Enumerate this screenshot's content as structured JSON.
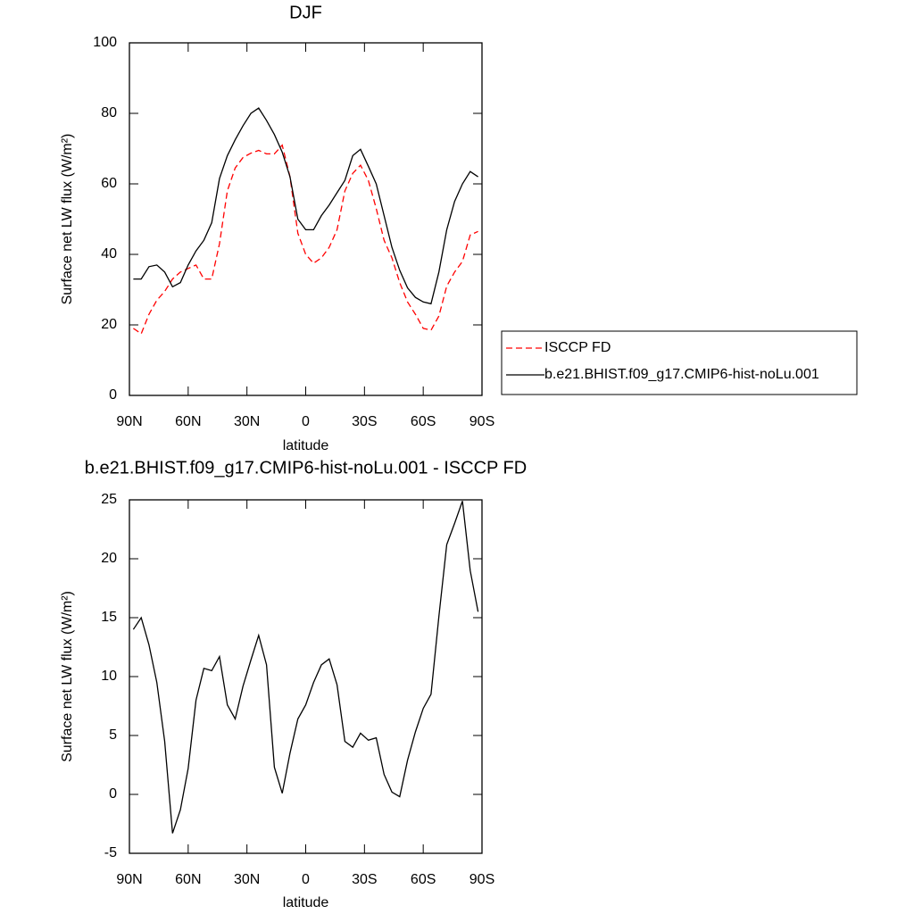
{
  "chart_data": [
    {
      "type": "line",
      "title": "DJF",
      "x_label": "latitude",
      "y_label": "Surface net LW flux (W/m²)",
      "x": [
        88,
        84,
        80,
        76,
        72,
        68,
        64,
        60,
        56,
        52,
        48,
        44,
        40,
        36,
        32,
        28,
        24,
        20,
        16,
        12,
        8,
        4,
        0,
        -4,
        -8,
        -12,
        -16,
        -20,
        -24,
        -28,
        -32,
        -36,
        -40,
        -44,
        -48,
        -52,
        -56,
        -60,
        -64,
        -68,
        -72,
        -76,
        -80,
        -84,
        -88
      ],
      "series": [
        {
          "name": "ISCCP FD",
          "color": "#ff0000",
          "line_style": "dashed",
          "values": [
            19,
            17.5,
            23,
            27,
            29.5,
            33,
            35,
            36,
            37,
            33,
            33,
            43,
            58,
            64.5,
            67.5,
            68.7,
            69.5,
            68.5,
            68.5,
            71,
            62,
            46,
            40,
            37.5,
            39,
            42,
            47,
            58,
            63,
            65.3,
            61,
            53,
            44,
            39,
            32,
            26.5,
            23,
            19,
            18.5,
            22.5,
            31,
            35,
            38,
            45.5,
            46.5
          ]
        },
        {
          "name": "b.e21.BHIST.f09_g17.CMIP6-hist-noLu.001",
          "color": "#000000",
          "line_style": "solid",
          "values": [
            33,
            33,
            36.5,
            37,
            35,
            30.8,
            32,
            37,
            41,
            44,
            49,
            61.5,
            68,
            72.5,
            76.5,
            80,
            81.5,
            78,
            74,
            69,
            62,
            50,
            47,
            47,
            51,
            54,
            57.5,
            61,
            68,
            69.8,
            65,
            60,
            51,
            42,
            35.5,
            30.5,
            27.8,
            26.5,
            26,
            35,
            47,
            55,
            60,
            63.5,
            62
          ]
        }
      ],
      "xlim": [
        90,
        -90
      ],
      "ylim": [
        0,
        100
      ],
      "xticks": [
        {
          "value": 90,
          "label": "90N"
        },
        {
          "value": 60,
          "label": "60N"
        },
        {
          "value": 30,
          "label": "30N"
        },
        0,
        {
          "value": -30,
          "label": "30S"
        },
        {
          "value": -60,
          "label": "60S"
        },
        {
          "value": -90,
          "label": "90S"
        }
      ],
      "yticks": [
        0,
        20,
        40,
        60,
        80,
        100
      ],
      "legend": "right"
    },
    {
      "type": "line",
      "title": "b.e21.BHIST.f09_g17.CMIP6-hist-noLu.001 - ISCCP FD",
      "x_label": "latitude",
      "y_label": "Surface net LW flux (W/m²)",
      "x": [
        88,
        84,
        80,
        76,
        72,
        68,
        64,
        60,
        56,
        52,
        48,
        44,
        40,
        36,
        32,
        28,
        24,
        20,
        16,
        12,
        8,
        4,
        0,
        -4,
        -8,
        -12,
        -16,
        -20,
        -24,
        -28,
        -32,
        -36,
        -40,
        -44,
        -48,
        -52,
        -56,
        -60,
        -64,
        -68,
        -72,
        -76,
        -80,
        -84,
        -88
      ],
      "series": [
        {
          "color": "#000000",
          "line_style": "solid",
          "values": [
            14,
            15,
            12.7,
            9.5,
            4.5,
            -3.3,
            -1.3,
            2.2,
            8,
            10.7,
            10.5,
            11.7,
            7.6,
            6.4,
            9.2,
            11.4,
            13.5,
            11,
            2.3,
            0.1,
            3.5,
            6.4,
            7.6,
            9.5,
            11,
            11.5,
            9.3,
            4.5,
            4,
            5.2,
            4.6,
            4.8,
            1.7,
            0.2,
            -0.2,
            2.9,
            5.3,
            7.3,
            8.5,
            15.1,
            21.2,
            23,
            24.9,
            19,
            15.5
          ]
        }
      ],
      "xlim": [
        90,
        -90
      ],
      "ylim": [
        -5,
        25
      ],
      "xticks": [
        {
          "value": 90,
          "label": "90N"
        },
        {
          "value": 60,
          "label": "60N"
        },
        {
          "value": 30,
          "label": "30N"
        },
        0,
        {
          "value": -30,
          "label": "30S"
        },
        {
          "value": -60,
          "label": "60S"
        },
        {
          "value": -90,
          "label": "90S"
        }
      ],
      "yticks": [
        -5,
        0,
        5,
        10,
        15,
        20,
        25
      ]
    }
  ]
}
